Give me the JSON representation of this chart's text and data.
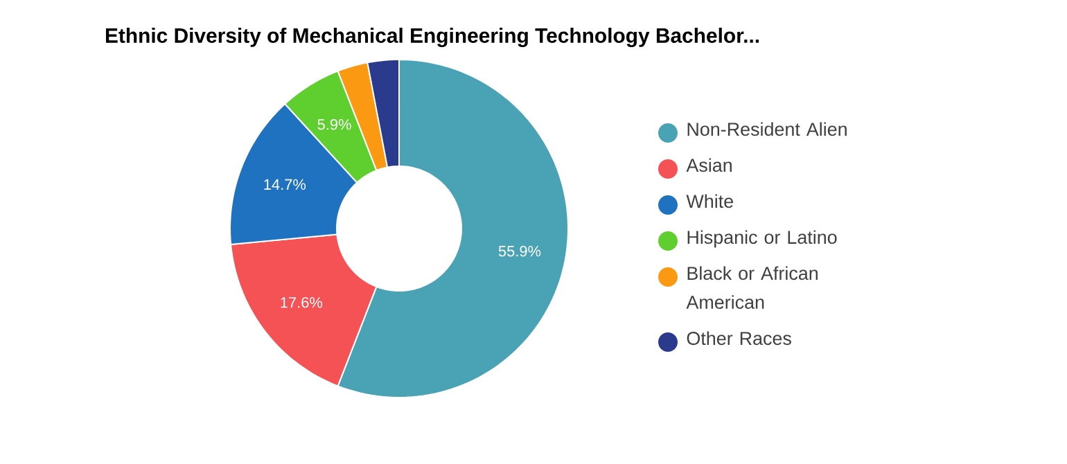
{
  "chart_data": {
    "type": "donut",
    "title": "Ethnic Diversity of Mechanical Engineering Technology Bachelor...",
    "categories": [
      "Non-Resident Alien",
      "Asian",
      "White",
      "Hispanic or Latino",
      "Black or African American",
      "Other Races"
    ],
    "values": [
      55.9,
      17.6,
      14.7,
      5.9,
      2.9,
      3.0
    ],
    "colors": [
      "#4aa3b5",
      "#f55255",
      "#1f72c0",
      "#5fcf30",
      "#fb9a12",
      "#2a3a8c"
    ],
    "value_labels": [
      "55.9%",
      "17.6%",
      "14.7%",
      "5.9%",
      null,
      null
    ],
    "legend": "right"
  }
}
